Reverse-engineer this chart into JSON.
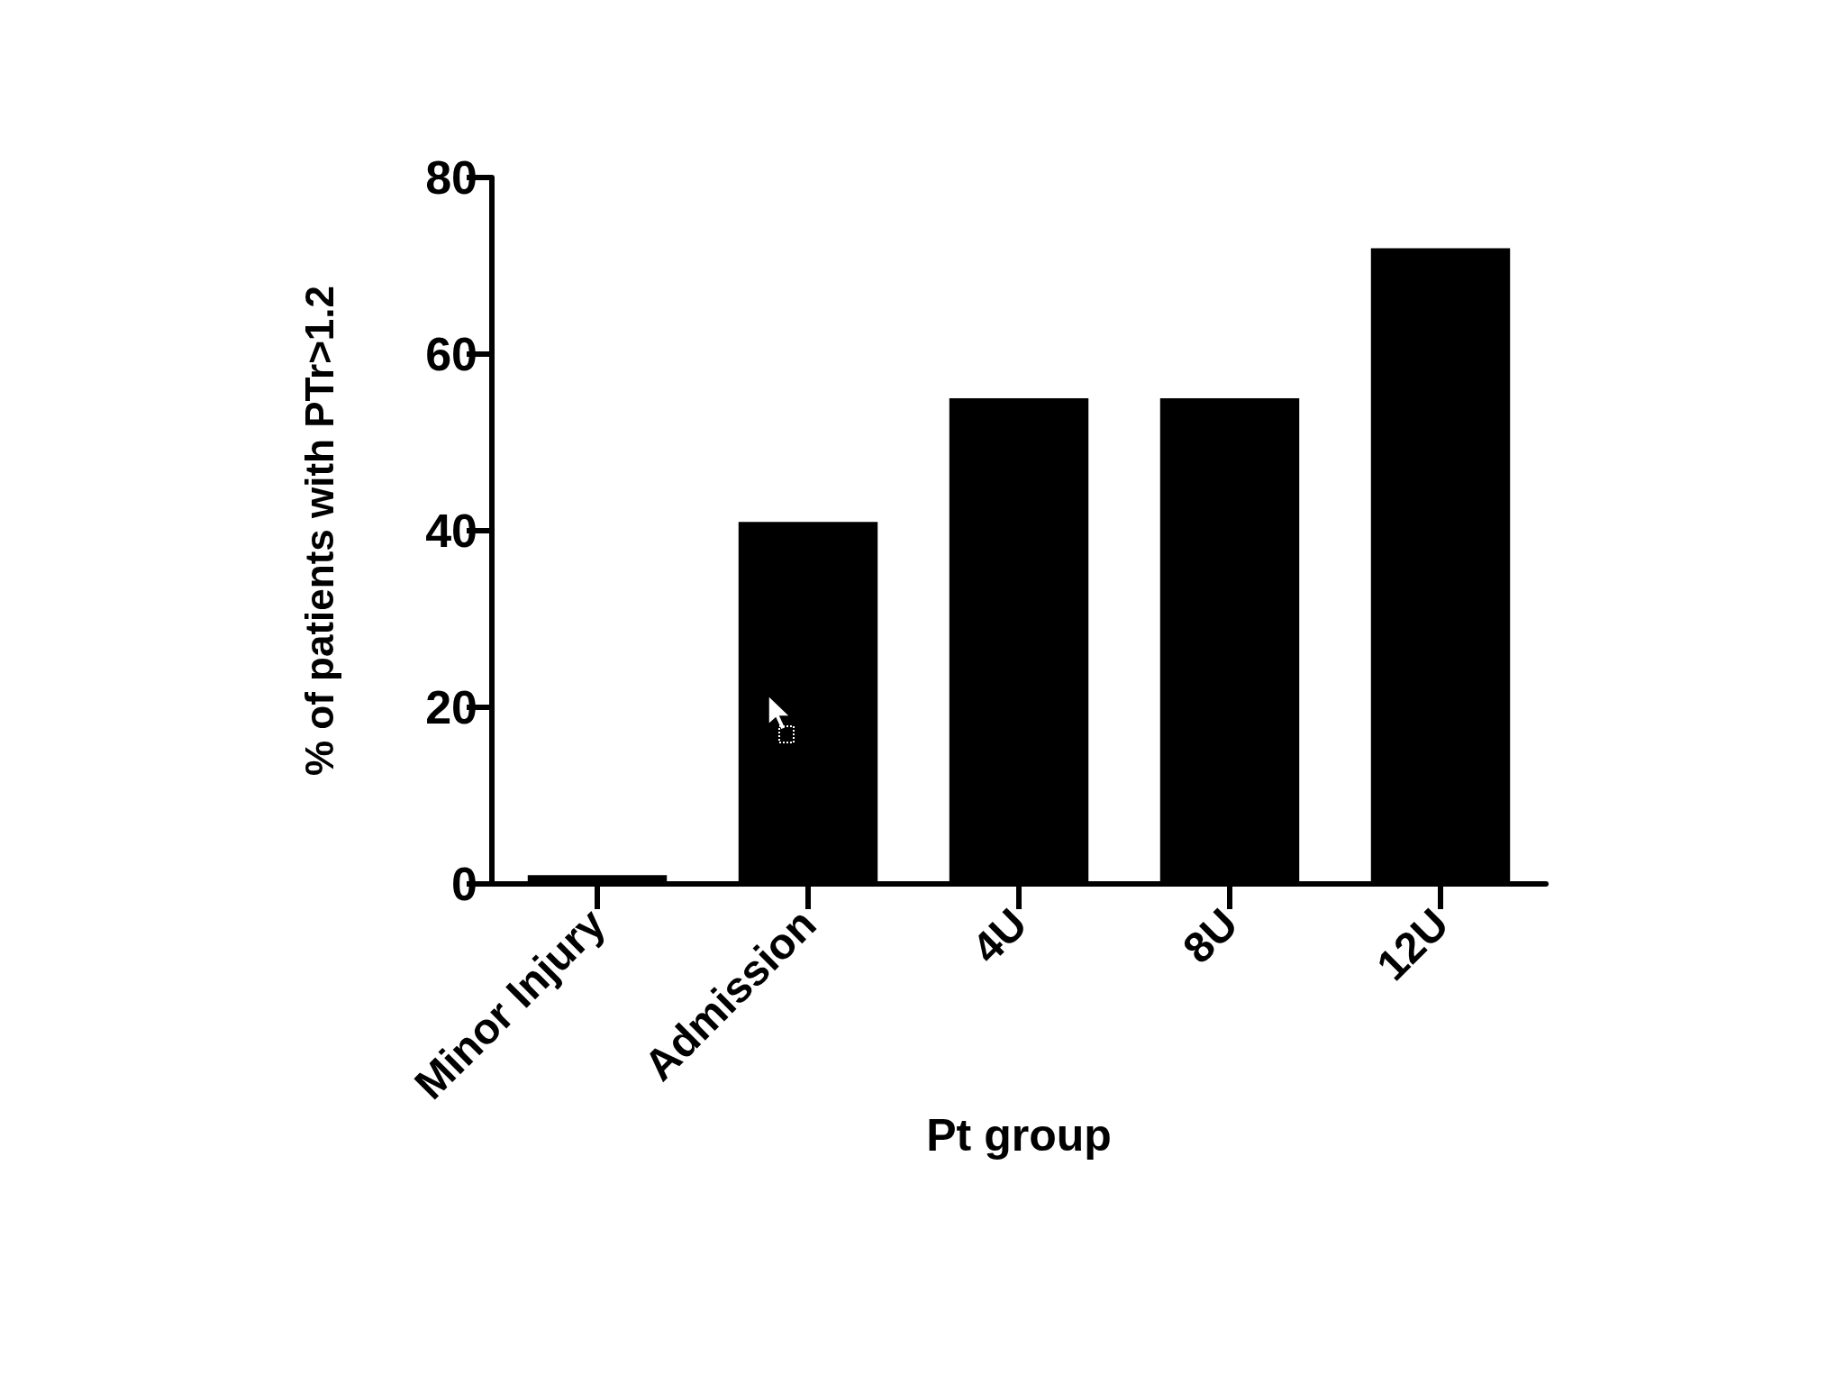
{
  "chart_data": {
    "type": "bar",
    "xlabel": "Pt group",
    "ylabel": "% of patients with PTr>1.2",
    "categories": [
      "Minor Injury",
      "Admission",
      "4U",
      "8U",
      "12U"
    ],
    "values": [
      1,
      41,
      55,
      55,
      72
    ],
    "color": "#000000",
    "ylim": [
      0,
      80
    ],
    "yticks": [
      0,
      20,
      40,
      60,
      80
    ],
    "grid": false
  }
}
